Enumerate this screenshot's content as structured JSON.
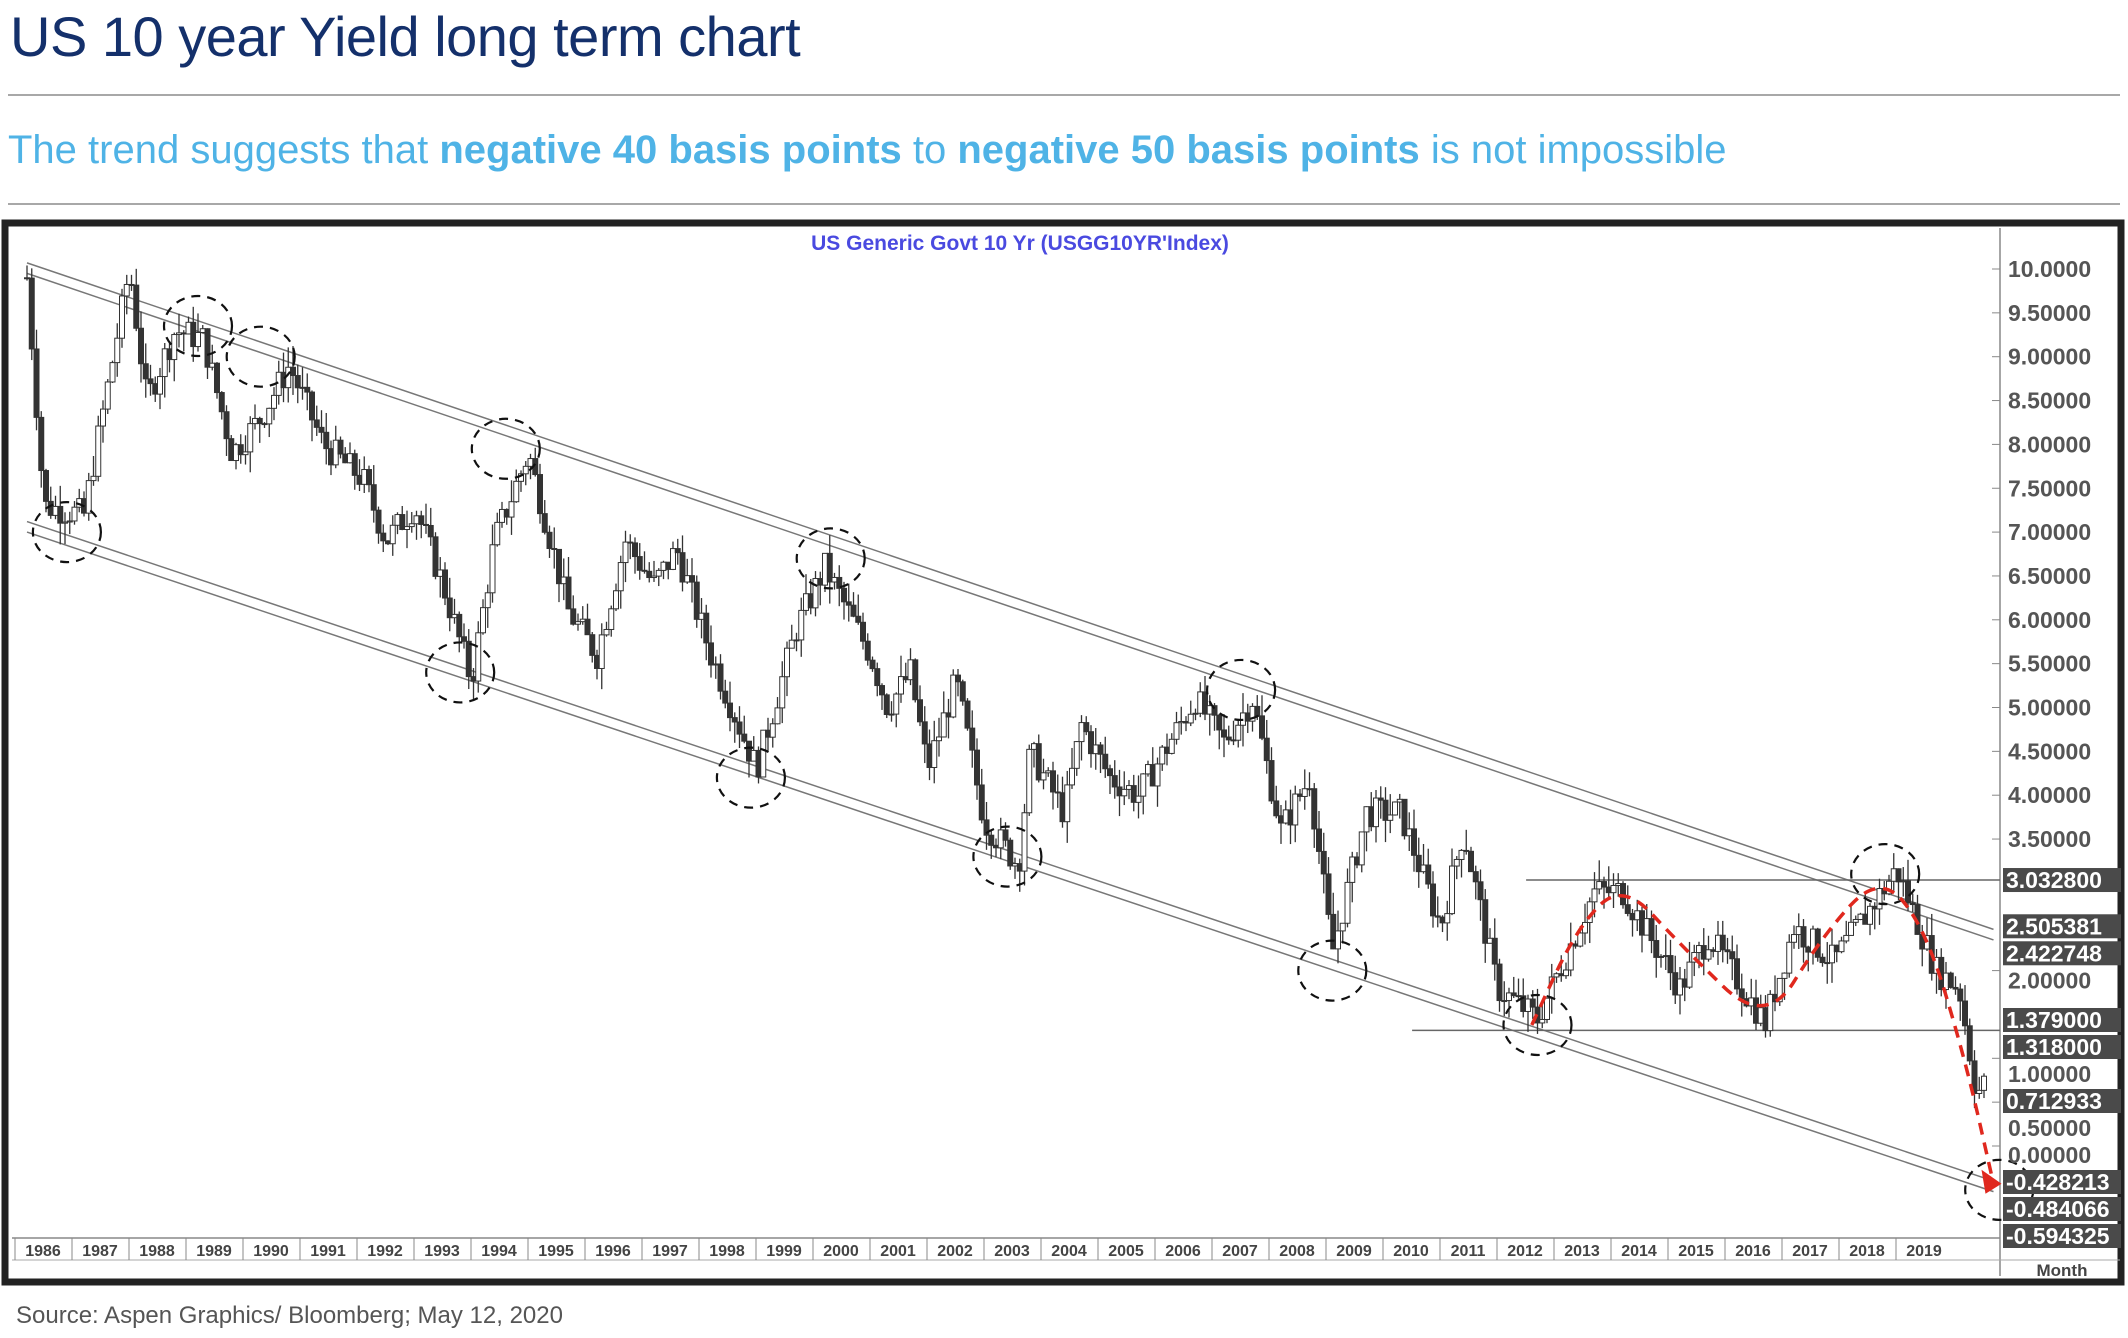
{
  "header": {
    "title": "US 10 year Yield long term chart",
    "subtitle_parts": [
      "The trend suggests that ",
      "negative 40 basis points",
      "  to ",
      "negative 50 basis points",
      " is not impossible"
    ]
  },
  "source": "Source: Aspen Graphics/ Bloomberg; May 12, 2020",
  "colors": {
    "title": "#14306b",
    "subtitle": "#4fb3e6",
    "chart_title": "#4a4ae0",
    "projection": "#e0281e",
    "label_box": "#4a4a4a"
  },
  "chart_data": {
    "type": "candlestick",
    "title": "US  Generic  Govt  10  Yr  (USGG10YR'Index)",
    "xlabel": "Month",
    "ylabel": "",
    "ylim": [
      -0.65,
      10.4
    ],
    "xlim": [
      1986,
      2020.5
    ],
    "grid": false,
    "y_ticks": [
      "10.0000",
      "9.50000",
      "9.00000",
      "8.50000",
      "8.00000",
      "7.50000",
      "7.00000",
      "6.50000",
      "6.00000",
      "5.50000",
      "5.00000",
      "4.50000",
      "4.00000",
      "3.50000",
      "2.00000",
      "1.00000",
      "0.50000",
      "0.00000"
    ],
    "y_tick_values": [
      10,
      9.5,
      9,
      8.5,
      8,
      7.5,
      7,
      6.5,
      6,
      5.5,
      5,
      4.5,
      4,
      3.5,
      2,
      1,
      0.5,
      0
    ],
    "x_ticks": [
      "1986",
      "1987",
      "1988",
      "1989",
      "1990",
      "1991",
      "1992",
      "1993",
      "1994",
      "1995",
      "1996",
      "1997",
      "1998",
      "1999",
      "2000",
      "2001",
      "2002",
      "2003",
      "2004",
      "2005",
      "2006",
      "2007",
      "2008",
      "2009",
      "2010",
      "2011",
      "2012",
      "2013",
      "2014",
      "2015",
      "2016",
      "2017",
      "2018",
      "2019"
    ],
    "highlight_labels": [
      {
        "text": "3.032800",
        "value": 3.0328
      },
      {
        "text": "2.505381",
        "value": 2.505381
      },
      {
        "text": "2.422748",
        "value": 2.422748
      },
      {
        "text": "1.379000",
        "value": 1.379
      },
      {
        "text": "1.318000",
        "value": 1.318
      },
      {
        "text": "0.712933",
        "value": 0.712933
      },
      {
        "text": "-0.428213",
        "value": -0.428213
      },
      {
        "text": "-0.484066",
        "value": -0.484066
      },
      {
        "text": "-0.594325",
        "value": -0.594325
      }
    ],
    "price_path": [
      [
        1986.0,
        9.9
      ],
      [
        1986.3,
        7.3
      ],
      [
        1987.0,
        7.2
      ],
      [
        1987.8,
        10.0
      ],
      [
        1988.1,
        8.5
      ],
      [
        1988.6,
        9.3
      ],
      [
        1989.1,
        9.2
      ],
      [
        1989.6,
        7.9
      ],
      [
        1990.1,
        8.3
      ],
      [
        1990.6,
        8.9
      ],
      [
        1991.2,
        8.0
      ],
      [
        1991.9,
        7.6
      ],
      [
        1992.3,
        6.9
      ],
      [
        1992.8,
        7.3
      ],
      [
        1993.3,
        6.4
      ],
      [
        1993.8,
        5.3
      ],
      [
        1994.2,
        6.9
      ],
      [
        1994.8,
        7.9
      ],
      [
        1995.5,
        6.1
      ],
      [
        1996.0,
        5.6
      ],
      [
        1996.5,
        6.9
      ],
      [
        1997.0,
        6.4
      ],
      [
        1997.4,
        6.8
      ],
      [
        1998.0,
        5.6
      ],
      [
        1998.8,
        4.3
      ],
      [
        1999.5,
        5.9
      ],
      [
        2000.0,
        6.6
      ],
      [
        2000.8,
        5.6
      ],
      [
        2001.1,
        5.0
      ],
      [
        2001.5,
        5.4
      ],
      [
        2001.8,
        4.3
      ],
      [
        2002.3,
        5.3
      ],
      [
        2002.8,
        3.7
      ],
      [
        2003.4,
        3.2
      ],
      [
        2003.6,
        4.5
      ],
      [
        2004.2,
        3.8
      ],
      [
        2004.5,
        4.8
      ],
      [
        2005.0,
        4.2
      ],
      [
        2005.5,
        4.0
      ],
      [
        2006.5,
        5.1
      ],
      [
        2007.0,
        4.6
      ],
      [
        2007.5,
        5.1
      ],
      [
        2008.0,
        3.6
      ],
      [
        2008.5,
        4.2
      ],
      [
        2008.9,
        2.2
      ],
      [
        2009.5,
        3.8
      ],
      [
        2010.1,
        3.8
      ],
      [
        2010.8,
        2.5
      ],
      [
        2011.2,
        3.6
      ],
      [
        2011.8,
        1.8
      ],
      [
        2012.5,
        1.45
      ],
      [
        2013.5,
        2.9
      ],
      [
        2014.0,
        2.9
      ],
      [
        2015.0,
        1.8
      ],
      [
        2015.5,
        2.4
      ],
      [
        2016.5,
        1.4
      ],
      [
        2017.0,
        2.5
      ],
      [
        2017.7,
        2.1
      ],
      [
        2018.8,
        3.15
      ],
      [
        2019.5,
        2.0
      ],
      [
        2019.9,
        1.8
      ],
      [
        2020.2,
        0.6
      ],
      [
        2020.35,
        0.7
      ]
    ],
    "channel": {
      "upper": [
        [
          1986,
          9.95
        ],
        [
          2020.5,
          2.35
        ]
      ],
      "lower": [
        [
          1986,
          7.0
        ],
        [
          2020.5,
          -0.52
        ]
      ]
    },
    "horizontal_levels": [
      {
        "value": 3.0328,
        "from": 2012.3
      },
      {
        "value": 1.318,
        "from": 2010.3
      }
    ],
    "projection_path": [
      [
        2012.4,
        1.38
      ],
      [
        2013.2,
        2.5
      ],
      [
        2014.0,
        3.0
      ],
      [
        2015.0,
        2.3
      ],
      [
        2016.5,
        1.35
      ],
      [
        2017.5,
        2.4
      ],
      [
        2018.5,
        3.1
      ],
      [
        2019.3,
        2.5
      ],
      [
        2020.0,
        1.0
      ],
      [
        2020.5,
        -0.43
      ]
    ],
    "circled_points": [
      [
        1986.7,
        7.0
      ],
      [
        1989.0,
        9.35
      ],
      [
        1990.1,
        9.0
      ],
      [
        1994.4,
        7.95
      ],
      [
        1993.6,
        5.4
      ],
      [
        2000.1,
        6.7
      ],
      [
        1998.7,
        4.2
      ],
      [
        2003.2,
        3.3
      ],
      [
        2007.3,
        5.2
      ],
      [
        2008.9,
        2.0
      ],
      [
        2012.5,
        1.38
      ],
      [
        2018.6,
        3.1
      ],
      [
        2020.6,
        -0.5
      ]
    ]
  }
}
